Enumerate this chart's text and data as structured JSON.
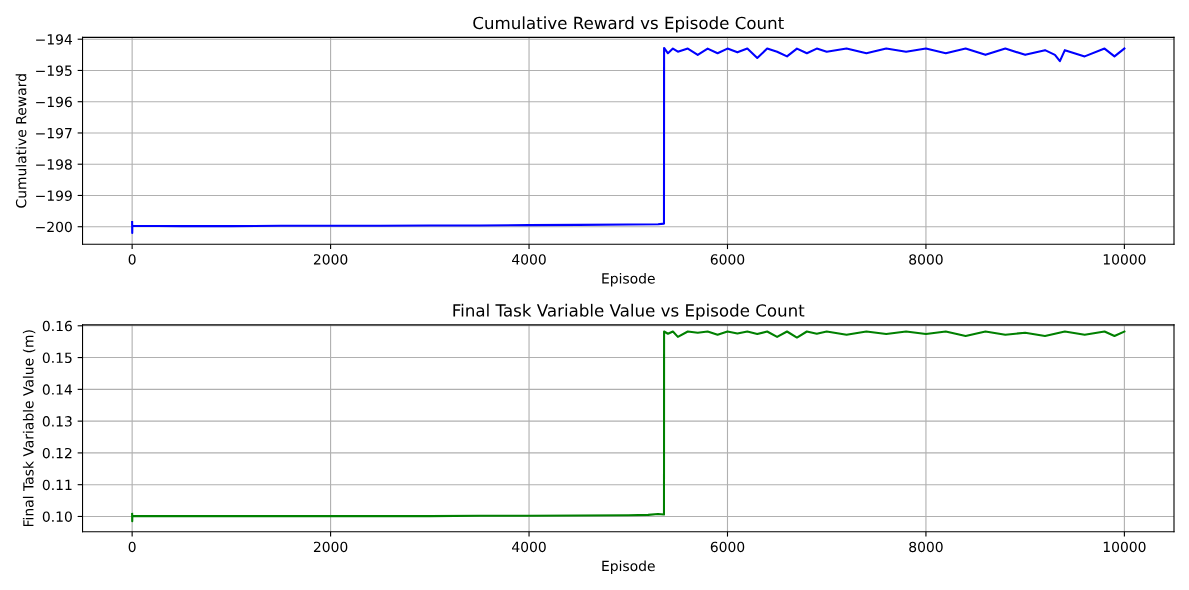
{
  "chart_data": [
    {
      "type": "line",
      "title": "Cumulative Reward vs Episode Count",
      "xlabel": "Episode",
      "ylabel": "Cumulative Reward",
      "xlim": [
        -500,
        10500
      ],
      "ylim": [
        -200.56,
        -193.94
      ],
      "xticks": [
        0,
        2000,
        4000,
        6000,
        8000,
        10000
      ],
      "yticks": [
        {
          "value": -200,
          "label": "−200"
        },
        {
          "value": -199,
          "label": "−199"
        },
        {
          "value": -198,
          "label": "−198"
        },
        {
          "value": -197,
          "label": "−197"
        },
        {
          "value": -196,
          "label": "−196"
        },
        {
          "value": -195,
          "label": "−195"
        },
        {
          "value": -194,
          "label": "−194"
        }
      ],
      "grid": true,
      "marker": "none",
      "line_style": "solid",
      "series": [
        {
          "color": "#0000ff",
          "x": [
            0,
            1,
            2,
            3,
            500,
            1000,
            1500,
            2000,
            2500,
            3000,
            3500,
            4000,
            4500,
            5000,
            5300,
            5360,
            5361,
            5400,
            5450,
            5500,
            5600,
            5700,
            5800,
            5900,
            6000,
            6100,
            6200,
            6300,
            6400,
            6500,
            6600,
            6700,
            6800,
            6900,
            7000,
            7200,
            7400,
            7600,
            7800,
            8000,
            8200,
            8400,
            8600,
            8800,
            9000,
            9200,
            9300,
            9350,
            9400,
            9600,
            9800,
            9900,
            10000
          ],
          "values": [
            -199.85,
            -200.2,
            -199.98,
            -199.97,
            -199.98,
            -199.98,
            -199.97,
            -199.97,
            -199.97,
            -199.96,
            -199.96,
            -199.95,
            -199.94,
            -199.93,
            -199.92,
            -199.9,
            -194.28,
            -194.45,
            -194.3,
            -194.4,
            -194.3,
            -194.5,
            -194.3,
            -194.45,
            -194.3,
            -194.42,
            -194.3,
            -194.6,
            -194.3,
            -194.4,
            -194.55,
            -194.3,
            -194.45,
            -194.3,
            -194.4,
            -194.3,
            -194.45,
            -194.3,
            -194.4,
            -194.3,
            -194.45,
            -194.3,
            -194.5,
            -194.3,
            -194.5,
            -194.35,
            -194.5,
            -194.7,
            -194.35,
            -194.55,
            -194.3,
            -194.55,
            -194.3
          ]
        }
      ]
    },
    {
      "type": "line",
      "title": "Final Task Variable Value vs Episode Count",
      "xlabel": "Episode",
      "ylabel": "Final Task Variable Value (m)",
      "xlim": [
        -500,
        10500
      ],
      "ylim": [
        0.0952,
        0.1603
      ],
      "xticks": [
        0,
        2000,
        4000,
        6000,
        8000,
        10000
      ],
      "yticks": [
        {
          "value": 0.1,
          "label": "0.10"
        },
        0.11,
        0.12,
        0.13,
        0.14,
        0.15,
        0.16
      ],
      "grid": true,
      "marker": "none",
      "line_style": "solid",
      "series": [
        {
          "color": "#008000",
          "x": [
            0,
            1,
            2,
            3,
            500,
            1000,
            1500,
            2000,
            2500,
            3000,
            3500,
            4000,
            4500,
            5000,
            5200,
            5300,
            5360,
            5361,
            5400,
            5450,
            5500,
            5600,
            5700,
            5800,
            5900,
            6000,
            6100,
            6200,
            6300,
            6400,
            6500,
            6600,
            6700,
            6800,
            6900,
            7000,
            7200,
            7400,
            7600,
            7800,
            8000,
            8200,
            8400,
            8600,
            8800,
            9000,
            9200,
            9400,
            9600,
            9800,
            9900,
            10000
          ],
          "values": [
            0.1008,
            0.0985,
            0.1002,
            0.1001,
            0.1001,
            0.1001,
            0.1001,
            0.1001,
            0.1001,
            0.1001,
            0.1002,
            0.1002,
            0.1003,
            0.1004,
            0.1005,
            0.1008,
            0.1006,
            0.1582,
            0.1575,
            0.1582,
            0.1565,
            0.1582,
            0.1578,
            0.1582,
            0.1572,
            0.1582,
            0.1576,
            0.1582,
            0.1574,
            0.1582,
            0.1565,
            0.1582,
            0.1563,
            0.1582,
            0.1575,
            0.1582,
            0.1572,
            0.1582,
            0.1574,
            0.1582,
            0.1574,
            0.1582,
            0.1568,
            0.1582,
            0.1572,
            0.1578,
            0.1568,
            0.1582,
            0.1572,
            0.1582,
            0.1568,
            0.1582
          ]
        }
      ]
    }
  ]
}
